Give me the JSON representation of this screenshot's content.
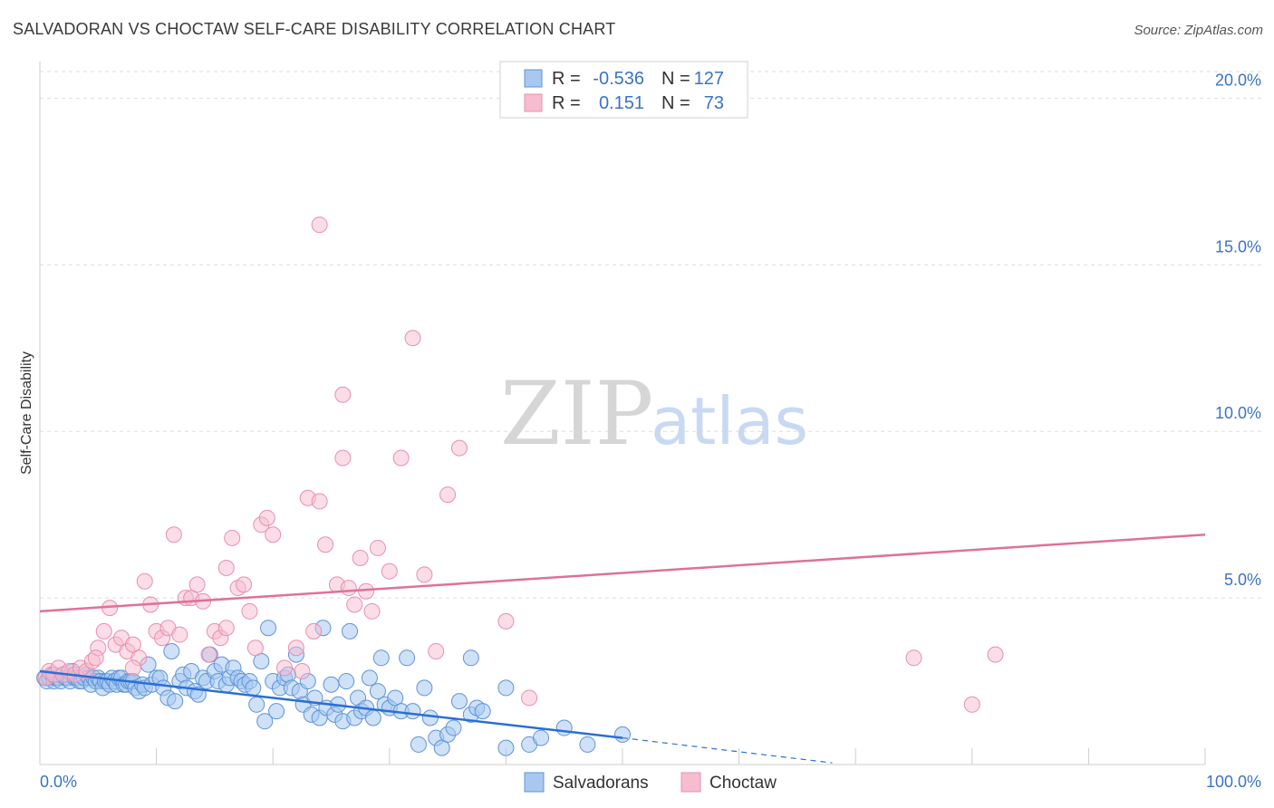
{
  "chart_data": {
    "type": "scatter",
    "title": "SALVADORAN VS CHOCTAW SELF-CARE DISABILITY CORRELATION CHART",
    "source": "Source: ZipAtlas.com",
    "ylabel": "Self-Care Disability",
    "xlabel": "",
    "xlim": [
      0,
      100
    ],
    "ylim": [
      0,
      20.8
    ],
    "x_tick_labels": [
      "0.0%",
      "100.0%"
    ],
    "y_ticks": [
      5,
      10,
      15,
      20
    ],
    "y_tick_labels": [
      "5.0%",
      "10.0%",
      "15.0%",
      "20.0%"
    ],
    "legend": {
      "rows": [
        {
          "r_label": "R =",
          "r_value": "-0.536",
          "n_label": "N =",
          "n_value": "127"
        },
        {
          "r_label": "R =",
          "r_value": "0.151",
          "n_label": "N =",
          "n_value": "73"
        }
      ]
    },
    "bottom_legend": [
      "Salvadorans",
      "Choctaw"
    ],
    "watermark": {
      "zip": "ZIP",
      "atlas": "atlas"
    },
    "colors": {
      "salvadorans_fill": "#a8c8f0",
      "salvadorans_stroke": "#5d94d8",
      "salvadorans_line": "#2b6fd4",
      "choctaw_fill": "#f6bcd0",
      "choctaw_stroke": "#e88fae",
      "choctaw_line": "#e0709a",
      "tick_text": "#3b73c4",
      "grid": "#dddddd"
    },
    "series": [
      {
        "name": "Salvadorans",
        "trend": {
          "x0": 0,
          "y0": 2.8,
          "x1": 50,
          "y1": 0.8,
          "dashed_to_x": 68,
          "dashed_to_y": 0.05
        },
        "points": [
          [
            0.4,
            2.6
          ],
          [
            0.6,
            2.5
          ],
          [
            0.8,
            2.6
          ],
          [
            1.0,
            2.7
          ],
          [
            1.2,
            2.5
          ],
          [
            1.4,
            2.6
          ],
          [
            1.6,
            2.6
          ],
          [
            1.8,
            2.5
          ],
          [
            2.0,
            2.7
          ],
          [
            2.2,
            2.6
          ],
          [
            2.4,
            2.6
          ],
          [
            2.6,
            2.5
          ],
          [
            2.8,
            2.8
          ],
          [
            3.0,
            2.6
          ],
          [
            3.2,
            2.6
          ],
          [
            3.4,
            2.5
          ],
          [
            3.6,
            2.5
          ],
          [
            3.8,
            2.6
          ],
          [
            4.0,
            2.7
          ],
          [
            4.2,
            2.6
          ],
          [
            4.4,
            2.4
          ],
          [
            4.6,
            2.6
          ],
          [
            4.8,
            2.5
          ],
          [
            5.0,
            2.6
          ],
          [
            5.2,
            2.5
          ],
          [
            5.4,
            2.3
          ],
          [
            5.6,
            2.5
          ],
          [
            5.8,
            2.5
          ],
          [
            6.0,
            2.4
          ],
          [
            6.2,
            2.6
          ],
          [
            6.4,
            2.5
          ],
          [
            6.6,
            2.4
          ],
          [
            6.8,
            2.6
          ],
          [
            7.0,
            2.6
          ],
          [
            7.2,
            2.4
          ],
          [
            7.4,
            2.4
          ],
          [
            7.6,
            2.5
          ],
          [
            7.8,
            2.5
          ],
          [
            8.0,
            2.5
          ],
          [
            8.2,
            2.3
          ],
          [
            8.5,
            2.2
          ],
          [
            8.8,
            2.4
          ],
          [
            9.0,
            2.3
          ],
          [
            9.3,
            3.0
          ],
          [
            9.6,
            2.4
          ],
          [
            10.0,
            2.6
          ],
          [
            10.3,
            2.6
          ],
          [
            10.6,
            2.3
          ],
          [
            11.0,
            2.0
          ],
          [
            11.3,
            3.4
          ],
          [
            11.6,
            1.9
          ],
          [
            12.0,
            2.5
          ],
          [
            12.3,
            2.7
          ],
          [
            12.6,
            2.3
          ],
          [
            13.0,
            2.8
          ],
          [
            13.3,
            2.2
          ],
          [
            13.6,
            2.1
          ],
          [
            14.0,
            2.6
          ],
          [
            14.3,
            2.5
          ],
          [
            14.6,
            3.3
          ],
          [
            15.0,
            2.8
          ],
          [
            15.3,
            2.5
          ],
          [
            15.6,
            3.0
          ],
          [
            16.0,
            2.4
          ],
          [
            16.3,
            2.6
          ],
          [
            16.6,
            2.9
          ],
          [
            17.0,
            2.6
          ],
          [
            17.3,
            2.5
          ],
          [
            17.6,
            2.4
          ],
          [
            18.0,
            2.5
          ],
          [
            18.3,
            2.3
          ],
          [
            18.6,
            1.8
          ],
          [
            19.0,
            3.1
          ],
          [
            19.3,
            1.3
          ],
          [
            19.6,
            4.1
          ],
          [
            20.0,
            2.5
          ],
          [
            20.3,
            1.6
          ],
          [
            20.6,
            2.3
          ],
          [
            21.0,
            2.6
          ],
          [
            21.3,
            2.7
          ],
          [
            21.6,
            2.3
          ],
          [
            22.0,
            3.3
          ],
          [
            22.3,
            2.2
          ],
          [
            22.6,
            1.8
          ],
          [
            23.0,
            2.5
          ],
          [
            23.3,
            1.5
          ],
          [
            23.6,
            2.0
          ],
          [
            24.0,
            1.4
          ],
          [
            24.3,
            4.1
          ],
          [
            24.6,
            1.7
          ],
          [
            25.0,
            2.4
          ],
          [
            25.3,
            1.5
          ],
          [
            25.6,
            1.8
          ],
          [
            26.0,
            1.3
          ],
          [
            26.3,
            2.5
          ],
          [
            26.6,
            4.0
          ],
          [
            27.0,
            1.4
          ],
          [
            27.3,
            2.0
          ],
          [
            27.6,
            1.6
          ],
          [
            28.0,
            1.7
          ],
          [
            28.3,
            2.6
          ],
          [
            28.6,
            1.4
          ],
          [
            29.0,
            2.2
          ],
          [
            29.3,
            3.2
          ],
          [
            29.6,
            1.8
          ],
          [
            30.0,
            1.7
          ],
          [
            30.5,
            2.0
          ],
          [
            31.0,
            1.6
          ],
          [
            31.5,
            3.2
          ],
          [
            32.0,
            1.6
          ],
          [
            32.5,
            0.6
          ],
          [
            33.0,
            2.3
          ],
          [
            33.5,
            1.4
          ],
          [
            34.0,
            0.8
          ],
          [
            34.5,
            0.5
          ],
          [
            35.0,
            0.9
          ],
          [
            35.5,
            1.1
          ],
          [
            36.0,
            1.9
          ],
          [
            37.0,
            1.5
          ],
          [
            37.5,
            1.7
          ],
          [
            38.0,
            1.6
          ],
          [
            40.0,
            0.5
          ],
          [
            42.0,
            0.6
          ],
          [
            43.0,
            0.8
          ],
          [
            45.0,
            1.1
          ],
          [
            47.0,
            0.6
          ],
          [
            50.0,
            0.9
          ],
          [
            37.0,
            3.2
          ],
          [
            40.0,
            2.3
          ]
        ]
      },
      {
        "name": "Choctaw",
        "trend": {
          "x0": 0,
          "y0": 4.6,
          "x1": 100,
          "y1": 6.9
        },
        "points": [
          [
            0.5,
            2.6
          ],
          [
            0.8,
            2.8
          ],
          [
            1.2,
            2.7
          ],
          [
            1.6,
            2.9
          ],
          [
            2.0,
            2.7
          ],
          [
            2.5,
            2.8
          ],
          [
            3.0,
            2.7
          ],
          [
            3.5,
            2.9
          ],
          [
            4.0,
            2.8
          ],
          [
            4.5,
            3.1
          ],
          [
            5.0,
            3.5
          ],
          [
            5.5,
            4.0
          ],
          [
            6.0,
            4.7
          ],
          [
            6.5,
            3.6
          ],
          [
            7.0,
            3.8
          ],
          [
            7.5,
            3.4
          ],
          [
            8.0,
            3.6
          ],
          [
            8.5,
            3.2
          ],
          [
            9.0,
            5.5
          ],
          [
            9.5,
            4.8
          ],
          [
            10.0,
            4.0
          ],
          [
            10.5,
            3.8
          ],
          [
            11.0,
            4.1
          ],
          [
            11.5,
            6.9
          ],
          [
            12.0,
            3.9
          ],
          [
            12.5,
            5.0
          ],
          [
            13.0,
            5.0
          ],
          [
            13.5,
            5.4
          ],
          [
            14.0,
            4.9
          ],
          [
            14.5,
            3.3
          ],
          [
            15.0,
            4.0
          ],
          [
            15.5,
            3.8
          ],
          [
            16.0,
            5.9
          ],
          [
            16.5,
            6.8
          ],
          [
            17.0,
            5.3
          ],
          [
            17.5,
            5.4
          ],
          [
            18.0,
            4.6
          ],
          [
            18.5,
            3.5
          ],
          [
            19.0,
            7.2
          ],
          [
            19.5,
            7.4
          ],
          [
            20.0,
            6.9
          ],
          [
            21.0,
            2.9
          ],
          [
            22.0,
            3.5
          ],
          [
            22.5,
            2.8
          ],
          [
            23.0,
            8.0
          ],
          [
            23.5,
            4.0
          ],
          [
            24.0,
            7.9
          ],
          [
            24.5,
            6.6
          ],
          [
            25.5,
            5.4
          ],
          [
            26.0,
            9.2
          ],
          [
            26.5,
            5.3
          ],
          [
            27.0,
            4.8
          ],
          [
            27.5,
            6.2
          ],
          [
            28.0,
            5.2
          ],
          [
            28.5,
            4.6
          ],
          [
            29.0,
            6.5
          ],
          [
            30.0,
            5.8
          ],
          [
            31.0,
            9.2
          ],
          [
            32.0,
            12.8
          ],
          [
            33.0,
            5.7
          ],
          [
            34.0,
            3.4
          ],
          [
            35.0,
            8.1
          ],
          [
            36.0,
            9.5
          ],
          [
            40.0,
            4.3
          ],
          [
            42.0,
            2.0
          ],
          [
            24.0,
            16.2
          ],
          [
            26.0,
            11.1
          ],
          [
            75.0,
            3.2
          ],
          [
            80.0,
            1.8
          ],
          [
            82.0,
            3.3
          ],
          [
            4.8,
            3.2
          ],
          [
            16.0,
            4.1
          ],
          [
            8.0,
            2.9
          ]
        ]
      }
    ]
  }
}
